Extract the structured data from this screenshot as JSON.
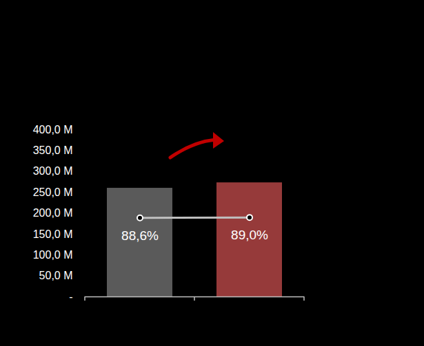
{
  "chart_data": {
    "type": "bar",
    "categories": [
      null,
      null
    ],
    "values": [
      260,
      273
    ],
    "colors": [
      "#5a5a5a",
      "#963a3a"
    ],
    "ylim": [
      0,
      400
    ],
    "yticks": [
      {
        "value": 0,
        "label": "-"
      },
      {
        "value": 50,
        "label": "50,0 M"
      },
      {
        "value": 100,
        "label": "100,0 M"
      },
      {
        "value": 150,
        "label": "150,0 M"
      },
      {
        "value": 200,
        "label": "200,0 M"
      },
      {
        "value": 250,
        "label": "250,0 M"
      },
      {
        "value": 300,
        "label": "300,0 M"
      },
      {
        "value": 350,
        "label": "350,0 M"
      },
      {
        "value": 400,
        "label": "400,0 M"
      }
    ],
    "y2lim": [
      0,
      187.5
    ],
    "tick_labels": "y",
    "data_labels": true,
    "series": [
      {
        "type": "line",
        "axis": "y2",
        "color": "#bfbfbf",
        "marker": "circle",
        "values": [
          88.6,
          89.0
        ],
        "value_labels": [
          "88,6%",
          "89,0%"
        ]
      }
    ]
  }
}
